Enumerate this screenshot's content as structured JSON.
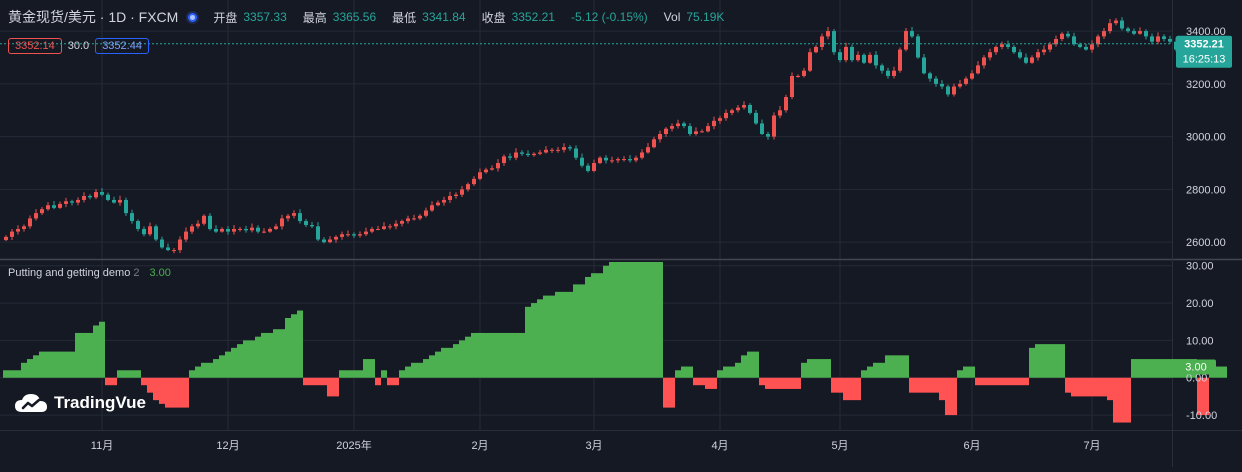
{
  "header": {
    "symbol": "黄金现货/美元 · 1D · FXCM",
    "open_label": "开盘",
    "open_value": "3357.33",
    "high_label": "最高",
    "high_value": "3365.56",
    "low_label": "最低",
    "low_value": "3341.84",
    "close_label": "收盘",
    "close_value": "3352.21",
    "change": "-5.12 (-0.15%)",
    "vol_label": "Vol",
    "vol_value": "75.19K"
  },
  "quote_row": {
    "bid": "3352.14",
    "spread": "30.0",
    "ask": "3352.44"
  },
  "price_tag": {
    "price": "3352.21",
    "countdown": "16:25:13"
  },
  "indicator": {
    "name": "Putting and getting demo",
    "param": "2",
    "value": "3.00",
    "tag": "3.00"
  },
  "logo": {
    "text": "TradingVue"
  },
  "colors": {
    "bg": "#151924",
    "up": "#ef5350",
    "down": "#26a69a",
    "pos": "#4caf50",
    "neg": "#ff5252",
    "grid": "#252a37"
  },
  "chart_data": [
    {
      "type": "candlestick",
      "title": "",
      "ylim": [
        2540,
        3480
      ],
      "yticks": [
        "2600.00",
        "2800.00",
        "3000.00",
        "3200.00",
        "3400.00"
      ],
      "ytick_values": [
        2600,
        2800,
        3000,
        3200,
        3400
      ],
      "xticks": [
        {
          "label": "11月",
          "index": 16
        },
        {
          "label": "12月",
          "index": 37
        },
        {
          "label": "2025年",
          "index": 58
        },
        {
          "label": "2月",
          "index": 79
        },
        {
          "label": "3月",
          "index": 98
        },
        {
          "label": "4月",
          "index": 119
        },
        {
          "label": "5月",
          "index": 139
        },
        {
          "label": "6月",
          "index": 161
        },
        {
          "label": "7月",
          "index": 181
        }
      ],
      "last_price": 3352.21,
      "close": [
        2620,
        2640,
        2650,
        2660,
        2690,
        2710,
        2725,
        2740,
        2730,
        2745,
        2755,
        2750,
        2760,
        2775,
        2770,
        2790,
        2780,
        2760,
        2750,
        2760,
        2710,
        2680,
        2650,
        2630,
        2660,
        2610,
        2580,
        2570,
        2570,
        2610,
        2640,
        2660,
        2670,
        2700,
        2650,
        2640,
        2650,
        2640,
        2650,
        2650,
        2645,
        2655,
        2640,
        2640,
        2650,
        2660,
        2690,
        2700,
        2710,
        2680,
        2665,
        2660,
        2610,
        2600,
        2610,
        2620,
        2630,
        2630,
        2625,
        2630,
        2640,
        2650,
        2650,
        2660,
        2660,
        2670,
        2680,
        2690,
        2690,
        2700,
        2720,
        2740,
        2750,
        2760,
        2775,
        2780,
        2800,
        2820,
        2840,
        2865,
        2875,
        2880,
        2900,
        2925,
        2920,
        2940,
        2935,
        2930,
        2935,
        2940,
        2950,
        2950,
        2950,
        2960,
        2955,
        2920,
        2890,
        2870,
        2900,
        2920,
        2910,
        2910,
        2915,
        2915,
        2910,
        2920,
        2940,
        2960,
        2990,
        3010,
        3030,
        3040,
        3050,
        3040,
        3010,
        3020,
        3020,
        3040,
        3060,
        3070,
        3090,
        3100,
        3110,
        3120,
        3090,
        3050,
        3010,
        3000,
        3080,
        3100,
        3150,
        3230,
        3230,
        3250,
        3320,
        3340,
        3380,
        3400,
        3320,
        3290,
        3340,
        3290,
        3310,
        3280,
        3310,
        3270,
        3250,
        3230,
        3250,
        3330,
        3400,
        3380,
        3300,
        3240,
        3220,
        3200,
        3190,
        3160,
        3190,
        3200,
        3220,
        3240,
        3270,
        3300,
        3320,
        3340,
        3350,
        3340,
        3320,
        3300,
        3280,
        3300,
        3320,
        3330,
        3350,
        3370,
        3390,
        3380,
        3350,
        3340,
        3330,
        3350,
        3380,
        3400,
        3430,
        3440,
        3410,
        3400,
        3390,
        3400,
        3380,
        3360,
        3380,
        3370,
        3360,
        3330,
        3330,
        3310,
        3340,
        3350,
        3358,
        3352.21
      ],
      "volume_label": "75.19K"
    },
    {
      "type": "bar",
      "title": "Putting and getting demo",
      "ylim": [
        -14,
        31
      ],
      "yticks": [
        "30.00",
        "20.00",
        "10.00",
        "0.00",
        "-10.00"
      ],
      "ytick_values": [
        30,
        20,
        10,
        0,
        -10
      ],
      "last_value": 3.0,
      "values": [
        2,
        2,
        2,
        4,
        5,
        6,
        7,
        7,
        7,
        7,
        7,
        7,
        12,
        12,
        12,
        14,
        15,
        -2,
        -2,
        2,
        2,
        2,
        2,
        -2,
        -4,
        -6,
        -7,
        -8,
        -8,
        -8,
        -8,
        2,
        3,
        4,
        4,
        5,
        6,
        7,
        8,
        9,
        10,
        10,
        11,
        12,
        12,
        13,
        13,
        16,
        17,
        18,
        -2,
        -2,
        -2,
        -2,
        -5,
        -5,
        2,
        2,
        2,
        2,
        5,
        5,
        -2,
        2,
        -2,
        -2,
        2,
        3,
        4,
        4,
        5,
        6,
        7,
        8,
        8,
        9,
        10,
        11,
        12,
        12,
        12,
        12,
        12,
        12,
        12,
        12,
        12,
        19,
        20,
        21,
        22,
        22,
        23,
        23,
        23,
        25,
        25,
        27,
        28,
        28,
        30,
        31,
        31,
        31,
        31,
        31,
        31,
        31,
        31,
        31,
        -8,
        -8,
        2,
        3,
        3,
        -2,
        -2,
        -3,
        -3,
        2,
        3,
        3,
        4,
        6,
        7,
        7,
        -2,
        -3,
        -3,
        -3,
        -3,
        -3,
        -3,
        4,
        5,
        5,
        5,
        5,
        -4,
        -4,
        -6,
        -6,
        -6,
        2,
        3,
        4,
        4,
        6,
        6,
        6,
        6,
        -4,
        -4,
        -4,
        -4,
        -4,
        -6,
        -10,
        -10,
        2,
        3,
        3,
        -2,
        -2,
        -2,
        -2,
        -2,
        -2,
        -2,
        -2,
        -2,
        8,
        9,
        9,
        9,
        9,
        9,
        -4,
        -5,
        -5,
        -5,
        -5,
        -5,
        -5,
        -6,
        -12,
        -12,
        -12,
        5,
        5,
        5,
        5,
        5,
        5,
        5,
        5,
        5,
        5,
        5,
        -10,
        -10,
        2,
        3,
        3
      ]
    }
  ]
}
